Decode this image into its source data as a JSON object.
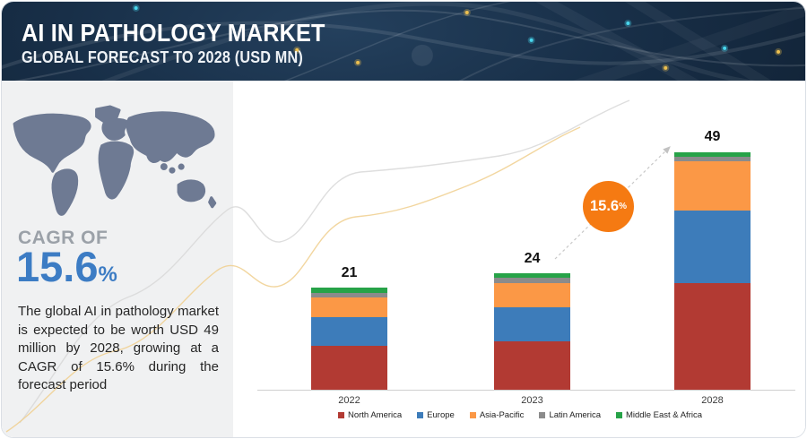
{
  "header": {
    "title": "AI IN PATHOLOGY MARKET",
    "subtitle": "GLOBAL FORECAST TO 2028 (USD MN)"
  },
  "sidebar": {
    "map_icon": "world-map",
    "cagr_label": "CAGR OF",
    "cagr_value": "15.6",
    "cagr_unit": "%",
    "description": "The global AI in pathology market is expected to be worth USD 49 million by 2028, growing at a CAGR of 15.6% during the forecast period"
  },
  "chart_data": {
    "type": "bar",
    "stacked": true,
    "title": "AI in Pathology Market, Global Forecast to 2028 (USD MN)",
    "xlabel": "",
    "ylabel": "",
    "grid": false,
    "legend_position": "bottom",
    "categories": [
      "2022",
      "2023",
      "2028"
    ],
    "totals": [
      21,
      24,
      49
    ],
    "series": [
      {
        "name": "North America",
        "color": "#b23a33",
        "values": [
          9,
          10,
          22
        ]
      },
      {
        "name": "Europe",
        "color": "#3d7cba",
        "values": [
          6,
          7,
          15
        ]
      },
      {
        "name": "Asia-Pacific",
        "color": "#fb9846",
        "values": [
          4,
          5,
          10
        ]
      },
      {
        "name": "Latin America",
        "color": "#8b8b8b",
        "values": [
          1,
          1,
          1
        ]
      },
      {
        "name": "Middle East & Africa",
        "color": "#27a348",
        "values": [
          1,
          1,
          1
        ]
      }
    ],
    "annotation": {
      "text": "15.6",
      "unit": "%",
      "color": "#f57a12",
      "meaning": "CAGR arrow from 2023 to 2028"
    }
  },
  "colors": {
    "header_bg": "#16293c",
    "sidebar_bg": "#f0f1f2",
    "cagr_blue": "#3c7cc4",
    "badge_orange": "#f57a12",
    "map_gray": "#6e7a93"
  }
}
